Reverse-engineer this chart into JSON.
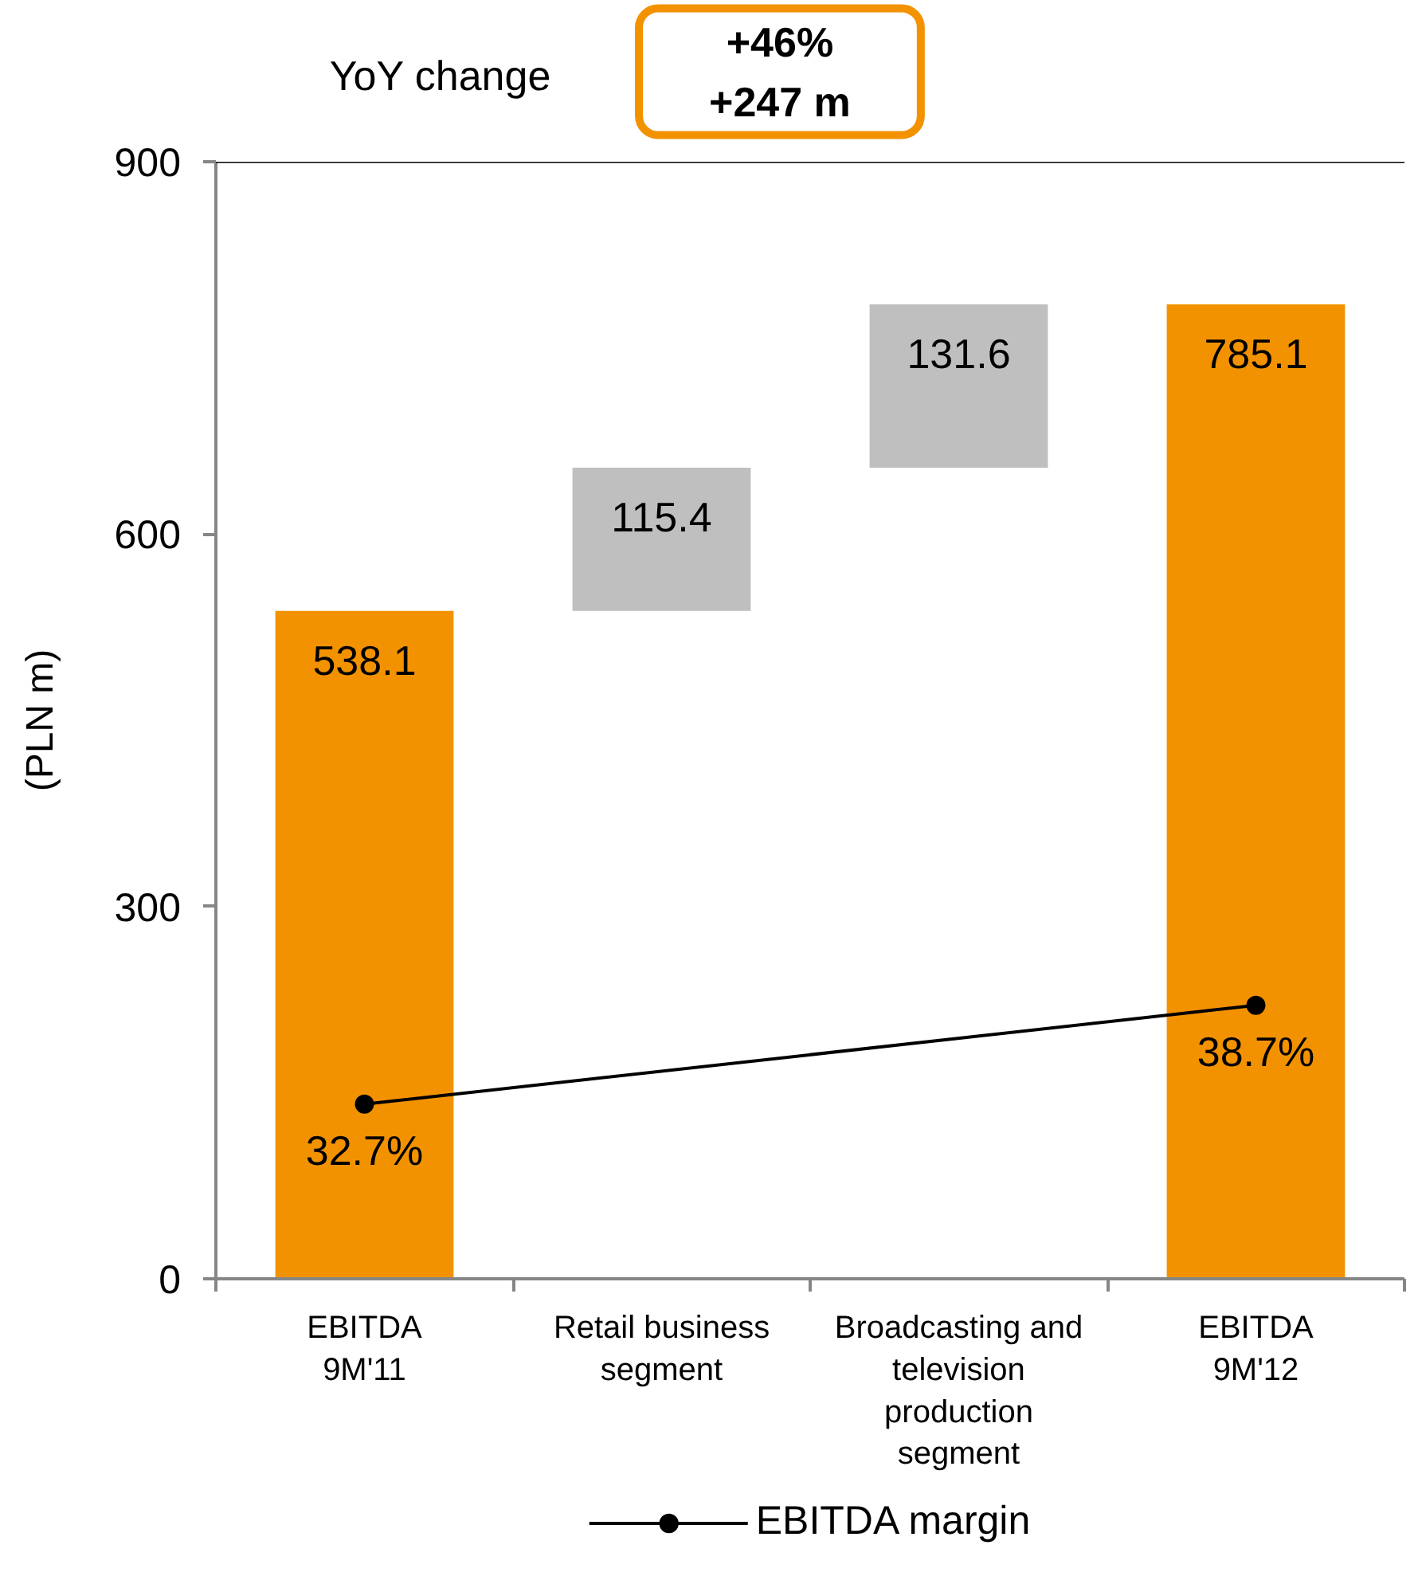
{
  "chart_data": {
    "type": "bar",
    "ylabel": "(PLN m)",
    "annotations": [
      "YoY change",
      "+46%\n+247 m"
    ],
    "categories": [
      "EBITDA\n9M'11",
      "Retail business\nsegment",
      "Broadcasting and\ntelevision\nproduction\nsegment",
      "EBITDA\n9M'12"
    ],
    "series": [
      {
        "colors": [
          "#f39200",
          "#bfbfbf",
          "#bfbfbf",
          "#f39200"
        ],
        "base": [
          0,
          538.1,
          653.5,
          0
        ],
        "values": [
          538.1,
          115.4,
          131.6,
          785.1
        ],
        "value_labels": [
          "538.1",
          "115.4",
          "131.6",
          "785.1"
        ]
      },
      {
        "type": "line",
        "name": "EBITDA margin",
        "color": "#000000",
        "axis": "y2",
        "marker": "circle",
        "x": [
          "EBITDA\n9M'11",
          "EBITDA\n9M'12"
        ],
        "values": [
          32.7,
          38.7
        ],
        "value_labels": [
          "32.7%",
          "38.7%"
        ]
      }
    ],
    "ylim": [
      0,
      900
    ],
    "yticks": [
      0,
      300,
      600,
      900
    ],
    "y2lim": [
      22.1,
      89.9
    ],
    "ref_lines": [
      {
        "axis": "y",
        "value": 900,
        "color": "#000000"
      }
    ],
    "grid": false,
    "legend": "bottom"
  }
}
